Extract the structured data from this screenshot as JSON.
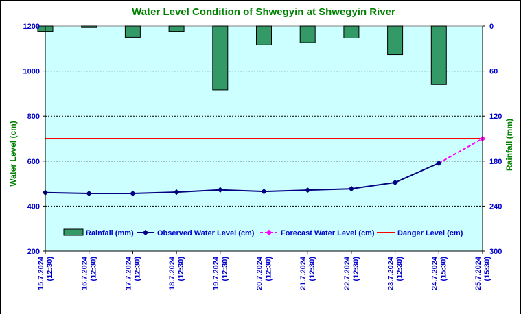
{
  "chart_data": {
    "type": "bar+line",
    "title": "Water Level Condition of Shwegyin at Shwegyin River",
    "xlabel": "",
    "ylabel_left": "Water Level (cm)",
    "ylabel_right": "Rainfall (mm)",
    "ylim_left": [
      200,
      1200
    ],
    "yticks_left": [
      200,
      400,
      600,
      800,
      1000,
      1200
    ],
    "ylim_right_inverted": [
      0,
      300
    ],
    "yticks_right": [
      0,
      60,
      120,
      180,
      240,
      300
    ],
    "grid": true,
    "legend_placement": "bottom",
    "categories": [
      "15.7.2024 (12:30)",
      "16.7.2024 (12:30)",
      "17.7.2024 (12:30)",
      "18.7.2024 (12:30)",
      "19.7.2024 (12:30)",
      "20.7.2024 (12:30)",
      "21.7.2024 (12:30)",
      "22.7.2024 (12:30)",
      "23.7.2024 (12:30)",
      "24.7.2024 (15:30)",
      "25.7.2024 (15:30)"
    ],
    "category_dates": [
      "15.7.2024",
      "16.7.2024",
      "17.7.2024",
      "18.7.2024",
      "19.7.2024",
      "20.7.2024",
      "21.7.2024",
      "22.7.2024",
      "23.7.2024",
      "24.7.2024",
      "25.7.2024"
    ],
    "category_times": [
      "(12:30)",
      "(12:30)",
      "(12:30)",
      "(12:30)",
      "(12:30)",
      "(12:30)",
      "(12:30)",
      "(12:30)",
      "(12:30)",
      "(15:30)",
      "(15:30)"
    ],
    "series": [
      {
        "name": "Rainfall (mm)",
        "type": "bar",
        "axis": "right",
        "color": "#339966",
        "values": [
          7,
          2,
          15,
          7,
          85,
          25,
          22,
          16,
          38,
          78,
          null
        ]
      },
      {
        "name": "Observed Water Level (cm)",
        "type": "line",
        "axis": "left",
        "color": "#000080",
        "values": [
          460,
          456,
          456,
          462,
          472,
          465,
          471,
          477,
          505,
          591,
          null
        ]
      },
      {
        "name": "Forecast Water Level (cm)",
        "type": "line-dashed",
        "axis": "left",
        "color": "#FF00FF",
        "values": [
          null,
          null,
          null,
          null,
          null,
          null,
          null,
          null,
          null,
          591,
          700
        ]
      },
      {
        "name": "Danger Level (cm)",
        "type": "hline",
        "axis": "left",
        "color": "#FF0000",
        "value": 700
      }
    ]
  },
  "colors": {
    "plot_background": "#CCFFFF",
    "title": "#008000",
    "axis_labels": "#008000",
    "tick_labels": "#0000CC"
  }
}
